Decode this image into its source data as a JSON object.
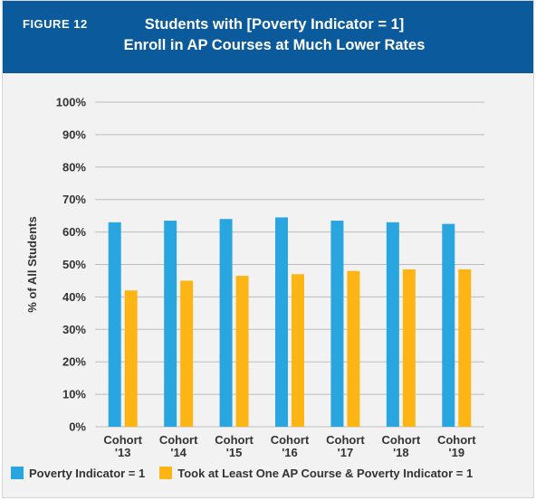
{
  "figure_label": "FIGURE 12",
  "title_line1": "Students with [Poverty Indicator = 1]",
  "title_line2": "Enroll in AP Courses at Much Lower Rates",
  "colors": {
    "header": "#0b5a9c",
    "series1": "#29a6e0",
    "series2": "#fdb515",
    "grid": "#bcbcbc"
  },
  "chart_data": {
    "type": "bar",
    "title": "Students with [Poverty Indicator = 1] Enroll in AP Courses at Much Lower Rates",
    "ylabel": "% of All Students",
    "xlabel": "",
    "ylim": [
      0,
      100
    ],
    "yticks": [
      "0%",
      "10%",
      "20%",
      "30%",
      "40%",
      "50%",
      "60%",
      "70%",
      "80%",
      "90%",
      "100%"
    ],
    "grid": true,
    "legend_position": "bottom",
    "categories": [
      [
        "Cohort",
        "'13"
      ],
      [
        "Cohort",
        "'14"
      ],
      [
        "Cohort",
        "'15"
      ],
      [
        "Cohort",
        "'16"
      ],
      [
        "Cohort",
        "'17"
      ],
      [
        "Cohort",
        "'18"
      ],
      [
        "Cohort",
        "'19"
      ]
    ],
    "series": [
      {
        "name": "Poverty Indicator = 1",
        "values": [
          63,
          63.5,
          64,
          64.5,
          63.5,
          63,
          62.5
        ]
      },
      {
        "name": "Took at Least One AP Course & Poverty Indicator = 1",
        "values": [
          42,
          45,
          46.5,
          47,
          48,
          48.5,
          48.5
        ]
      }
    ]
  }
}
